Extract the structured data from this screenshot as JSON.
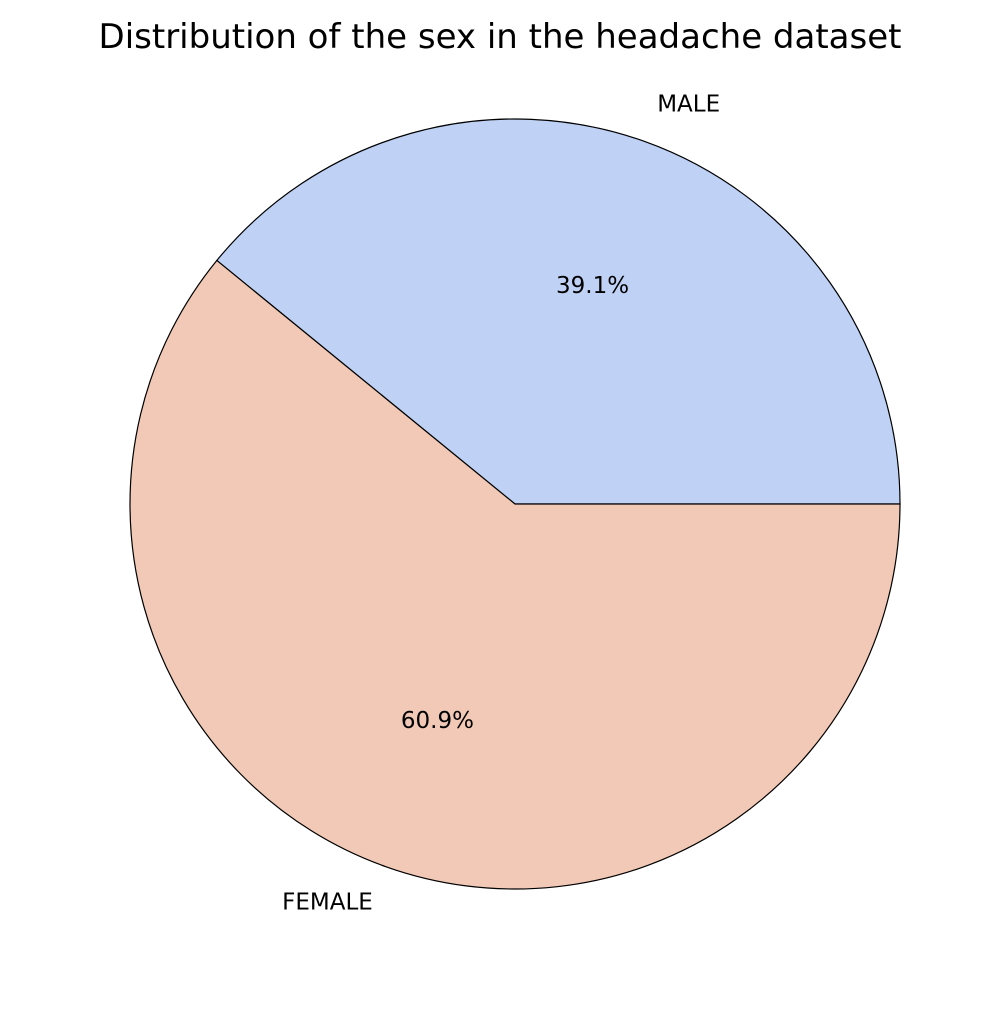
{
  "chart_data": {
    "type": "pie",
    "title": "Distribution of the sex in the headache dataset",
    "slices": [
      {
        "label": "MALE",
        "value": 39.1,
        "pct_label": "39.1%",
        "color": "#bfd2f5"
      },
      {
        "label": "FEMALE",
        "value": 60.9,
        "pct_label": "60.9%",
        "color": "#f2c9b6"
      }
    ],
    "start_angle_deg": 0,
    "direction": "counterclockwise",
    "edge_color": "#000000"
  }
}
